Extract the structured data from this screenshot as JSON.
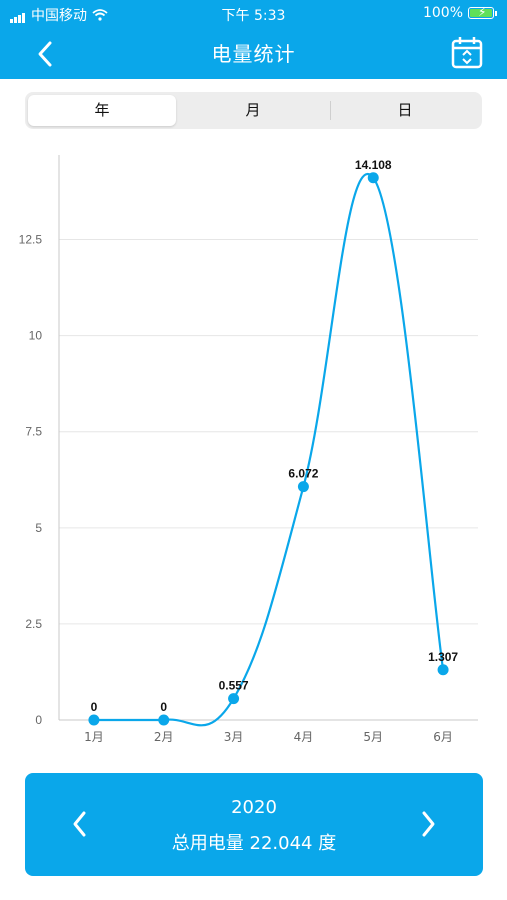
{
  "status_bar": {
    "carrier": "中国移动",
    "time": "下午 5:33",
    "battery": "100%"
  },
  "header": {
    "title": "电量统计",
    "back_icon": "chevron-left-icon",
    "calendar_icon": "calendar-icon"
  },
  "tabs": [
    {
      "label": "年",
      "active": true
    },
    {
      "label": "月",
      "active": false
    },
    {
      "label": "日",
      "active": false
    }
  ],
  "colors": {
    "primary": "#0aa7ea",
    "line": "#0aa7ea"
  },
  "chart_data": {
    "type": "line",
    "categories": [
      "1月",
      "2月",
      "3月",
      "4月",
      "5月",
      "6月"
    ],
    "values": [
      0,
      0,
      0.557,
      6.072,
      14.108,
      1.307
    ],
    "data_labels": [
      "0",
      "0",
      "0.557",
      "6.072",
      "14.108",
      "1.307"
    ],
    "y_ticks": [
      "0",
      "2.5",
      "5",
      "7.5",
      "10",
      "12.5"
    ],
    "ylim": [
      0,
      14.7
    ],
    "grid": true,
    "smooth": true
  },
  "footer": {
    "year": "2020",
    "total_label": "总用电量 22.044 度"
  }
}
